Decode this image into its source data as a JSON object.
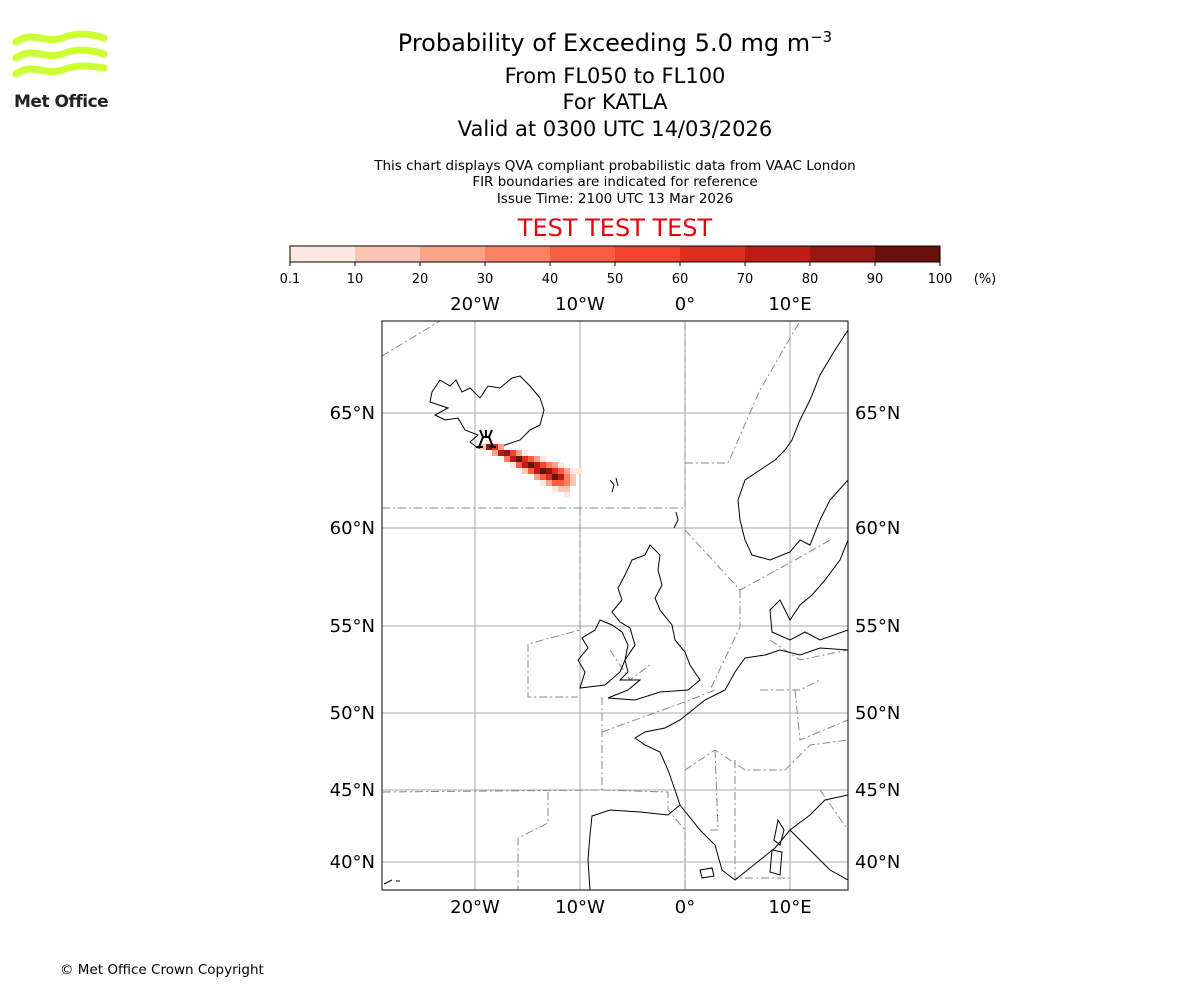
{
  "logo": {
    "text": "Met Office",
    "color": "#ccff33"
  },
  "title": {
    "line1_prefix": "Probability of Exceeding 5.0 mg m",
    "line1_exp": "−3",
    "line2": "From FL050 to FL100",
    "line3": "For KATLA",
    "line4": "Valid at 0300 UTC 14/03/2026"
  },
  "subtitle": {
    "line1": "This chart displays QVA compliant probabilistic data from VAAC London",
    "line2": "FIR boundaries are indicated for reference",
    "line3": "Issue Time: 2100 UTC 13 Mar 2026"
  },
  "test_banner": "TEST TEST TEST",
  "colorbar": {
    "ticks": [
      "0.1",
      "10",
      "20",
      "30",
      "40",
      "50",
      "60",
      "70",
      "80",
      "90",
      "100"
    ],
    "unit": "(%)",
    "colors": [
      "#fee8df",
      "#fdc6b4",
      "#fca38a",
      "#fc8163",
      "#fb5d42",
      "#f3432c",
      "#dc2d1e",
      "#bf1b14",
      "#941710",
      "#67110b"
    ]
  },
  "map": {
    "lon_labels": [
      "20°W",
      "10°W",
      "0°",
      "10°E"
    ],
    "lat_labels": [
      "65°N",
      "60°N",
      "55°N",
      "50°N",
      "45°N",
      "40°N"
    ],
    "volcano": "KATLA"
  },
  "chart_data": {
    "type": "heatmap",
    "title": "Probability of Exceeding 5.0 mg m−3",
    "lon_range": [
      -29,
      15.5
    ],
    "lat_range": [
      38.5,
      69
    ],
    "plume_axis": {
      "start": [
        -18.9,
        63.6
      ],
      "end": [
        -11.5,
        62.1
      ]
    },
    "max_probability_percent": 100
  },
  "footer": {
    "copyright": "© Met Office Crown Copyright"
  }
}
